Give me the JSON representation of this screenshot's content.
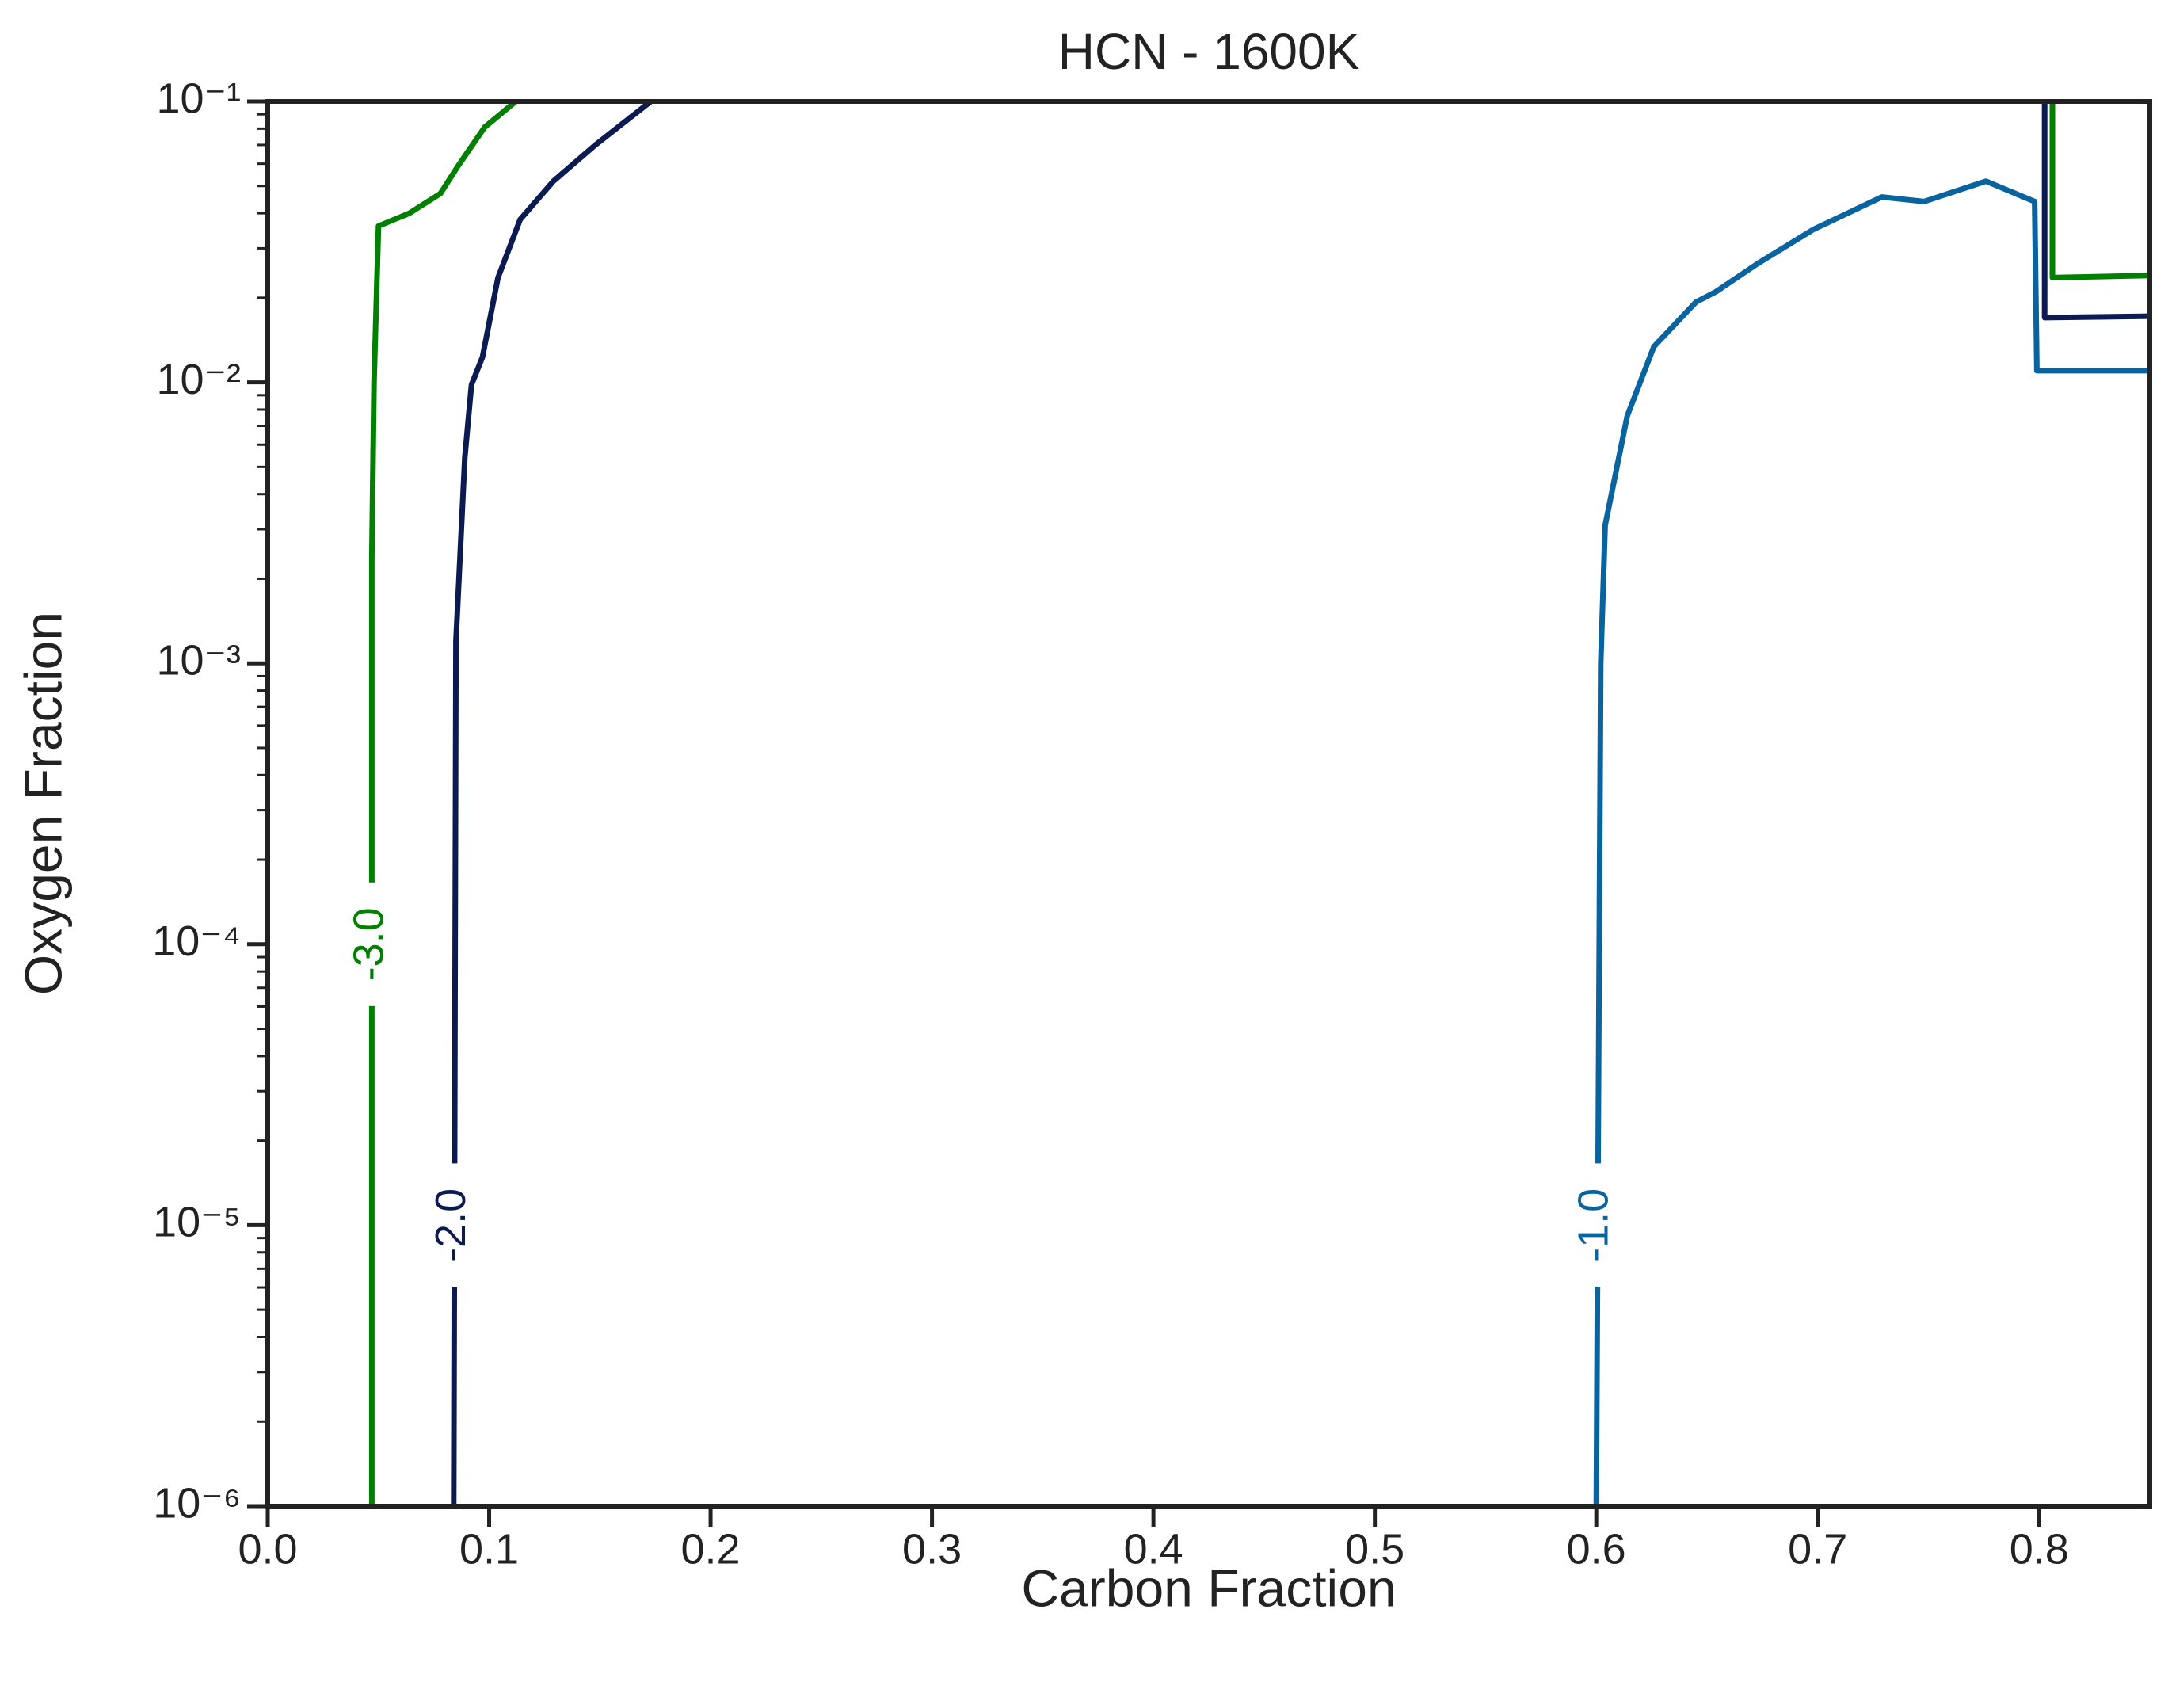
{
  "chart_data": {
    "type": "contour",
    "title": "HCN - 1600K",
    "xlabel": "Carbon Fraction",
    "ylabel": "Oxygen Fraction",
    "xlim": [
      0,
      0.85
    ],
    "ylim": [
      1e-06,
      0.1
    ],
    "yscale": "log",
    "xticks": [
      {
        "value": 0,
        "label": "0.0"
      },
      0.1,
      0.2,
      0.3,
      0.4,
      0.5,
      0.6,
      0.7,
      0.8
    ],
    "yticks": [
      {
        "value": 1e-06,
        "label": "10⁻⁶"
      },
      {
        "value": 1e-05,
        "label": "10⁻⁵"
      },
      {
        "value": 0.0001,
        "label": "10⁻⁴"
      },
      {
        "value": 0.001,
        "label": "10⁻³"
      },
      {
        "value": 0.01,
        "label": "10⁻²"
      },
      {
        "value": 0.1,
        "label": "10⁻¹"
      }
    ],
    "series": [
      {
        "name": "-3.0",
        "color": "#008000",
        "x": [
          0.047,
          0.047,
          0.048,
          0.05,
          0.064,
          0.078,
          0.086,
          0.098,
          0.112,
          null,
          0.806,
          0.806,
          0.85
        ],
        "y": [
          1e-06,
          0.0024,
          0.01,
          0.036,
          0.04,
          0.047,
          0.059,
          0.081,
          0.1,
          null,
          0.1,
          0.0236,
          0.024
        ]
      },
      {
        "name": "-2.0",
        "color": "#0b1a50",
        "x": [
          0.084,
          0.085,
          0.089,
          0.092,
          0.097,
          0.104,
          0.114,
          0.129,
          0.148,
          0.173,
          null,
          0.8025,
          0.8025,
          0.85
        ],
        "y": [
          1e-06,
          0.0012,
          0.0054,
          0.0098,
          0.0123,
          0.0236,
          0.038,
          0.052,
          0.07,
          0.1,
          null,
          0.1,
          0.017,
          0.0172
        ]
      },
      {
        "name": "-1.0",
        "color": "#08639e",
        "x": [
          0.6,
          0.602,
          0.604,
          0.614,
          0.626,
          0.645,
          0.654,
          0.673,
          0.698,
          0.729,
          0.748,
          0.776,
          0.798,
          0.799,
          0.85
        ],
        "y": [
          1e-06,
          0.001,
          0.0031,
          0.0076,
          0.0134,
          0.0193,
          0.021,
          0.0265,
          0.035,
          0.0457,
          0.044,
          0.052,
          0.044,
          0.011,
          0.011
        ]
      }
    ]
  }
}
